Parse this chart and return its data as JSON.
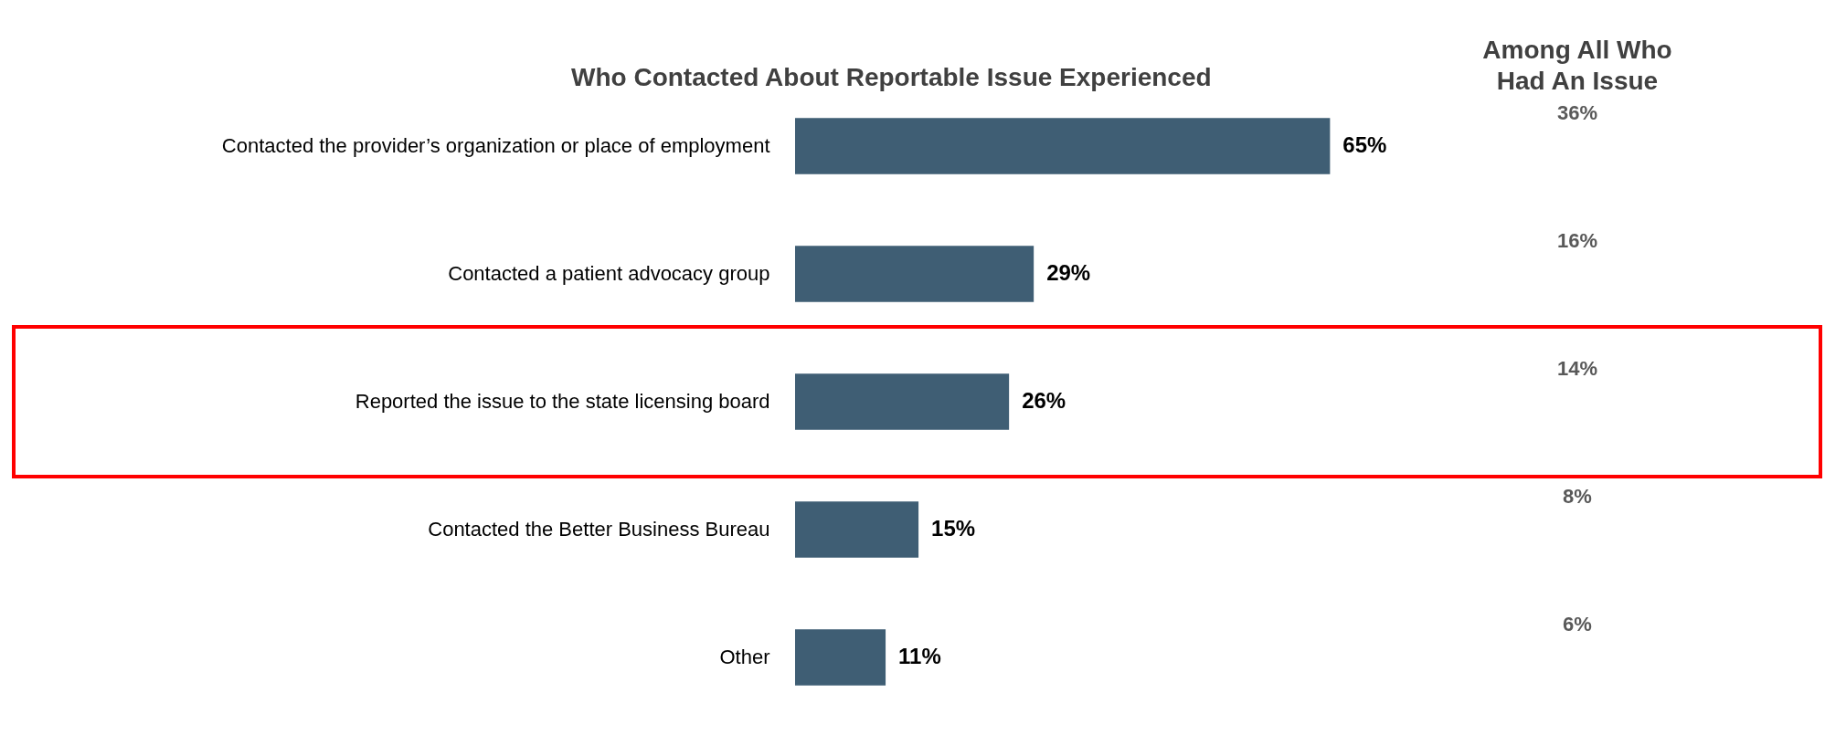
{
  "chart_data": {
    "type": "bar",
    "orientation": "horizontal",
    "title": "Who Contacted About Reportable Issue Experienced",
    "categories": [
      "Contacted the provider’s organization or place of employment",
      "Contacted a patient advocacy group",
      "Reported the issue to the state licensing board",
      "Contacted the Better Business Bureau",
      "Other"
    ],
    "values": [
      65,
      29,
      26,
      15,
      11
    ],
    "color": "#3f5e74",
    "value_labels": [
      "65%",
      "29%",
      "26%",
      "15%",
      "11%"
    ],
    "annotations": [
      "Among All Who Had An Issue",
      "36%",
      "16%",
      "14%",
      "8%",
      "6%"
    ]
  }
}
